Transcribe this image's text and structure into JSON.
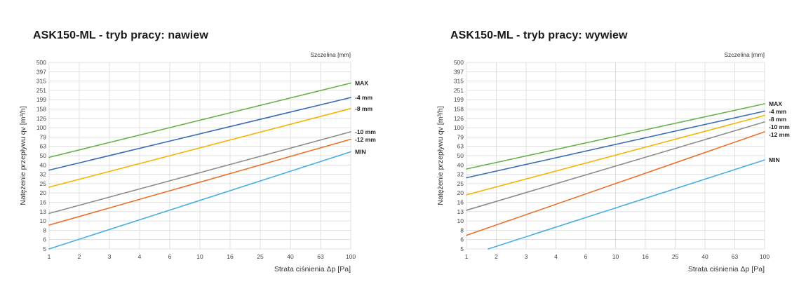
{
  "chart_data": [
    {
      "type": "line",
      "title": "ASK150-ML - tryb pracy: nawiew",
      "xlabel": "Strata ciśnienia Δp [Pa]",
      "ylabel": "Natężenie przepływu qv [m³/h]",
      "legend_title": "Szczelina [mm]",
      "x_scale": "log",
      "y_scale": "log",
      "grid": true,
      "x_ticks": [
        "1",
        "2",
        "3",
        "4",
        "6",
        "10",
        "16",
        "25",
        "40",
        "63",
        "100"
      ],
      "y_ticks": [
        "5",
        "6",
        "8",
        "10",
        "13",
        "16",
        "20",
        "25",
        "32",
        "40",
        "50",
        "63",
        "79",
        "100",
        "126",
        "158",
        "199",
        "251",
        "315",
        "397",
        "500"
      ],
      "xlim": [
        1,
        100
      ],
      "ylim": [
        5,
        500
      ],
      "series": [
        {
          "name": "MAX",
          "color": "#6ab04c",
          "x": [
            1,
            100
          ],
          "y": [
            48,
            300
          ]
        },
        {
          "name": "-4 mm",
          "color": "#3b6db4",
          "x": [
            1,
            100
          ],
          "y": [
            35,
            210
          ]
        },
        {
          "name": "-8 mm",
          "color": "#f5b400",
          "x": [
            1,
            100
          ],
          "y": [
            23,
            160
          ]
        },
        {
          "name": "-10 mm",
          "color": "#8c8c8c",
          "x": [
            1,
            100
          ],
          "y": [
            12,
            90
          ]
        },
        {
          "name": "-12 mm",
          "color": "#e8702a",
          "x": [
            1,
            100
          ],
          "y": [
            9,
            75
          ]
        },
        {
          "name": "MIN",
          "color": "#4aaee0",
          "x": [
            1,
            100
          ],
          "y": [
            5,
            55
          ]
        }
      ]
    },
    {
      "type": "line",
      "title": "ASK150-ML - tryb pracy: wywiew",
      "xlabel": "Strata ciśnienia Δp [Pa]",
      "ylabel": "Natężenie przepływu qv [m³/h]",
      "legend_title": "Szczelina [mm]",
      "x_scale": "log",
      "y_scale": "log",
      "grid": true,
      "x_ticks": [
        "1",
        "2",
        "3",
        "4",
        "6",
        "10",
        "16",
        "25",
        "40",
        "63",
        "100"
      ],
      "y_ticks": [
        "5",
        "6",
        "8",
        "10",
        "13",
        "16",
        "20",
        "25",
        "32",
        "40",
        "50",
        "63",
        "79",
        "100",
        "126",
        "158",
        "199",
        "251",
        "315",
        "397",
        "500"
      ],
      "xlim": [
        1,
        100
      ],
      "ylim": [
        5,
        500
      ],
      "series": [
        {
          "name": "MAX",
          "color": "#6ab04c",
          "x": [
            1,
            100
          ],
          "y": [
            36,
            180
          ]
        },
        {
          "name": "-4 mm",
          "color": "#3b6db4",
          "x": [
            1,
            100
          ],
          "y": [
            29,
            150
          ]
        },
        {
          "name": "-8 mm",
          "color": "#f5b400",
          "x": [
            1,
            100
          ],
          "y": [
            19,
            135
          ]
        },
        {
          "name": "-10 mm",
          "color": "#8c8c8c",
          "x": [
            1,
            100
          ],
          "y": [
            13,
            115
          ]
        },
        {
          "name": "-12 mm",
          "color": "#e8702a",
          "x": [
            1,
            100
          ],
          "y": [
            7,
            90
          ]
        },
        {
          "name": "MIN",
          "color": "#4aaee0",
          "x": [
            1.4,
            100
          ],
          "y": [
            5,
            45
          ]
        }
      ]
    }
  ]
}
